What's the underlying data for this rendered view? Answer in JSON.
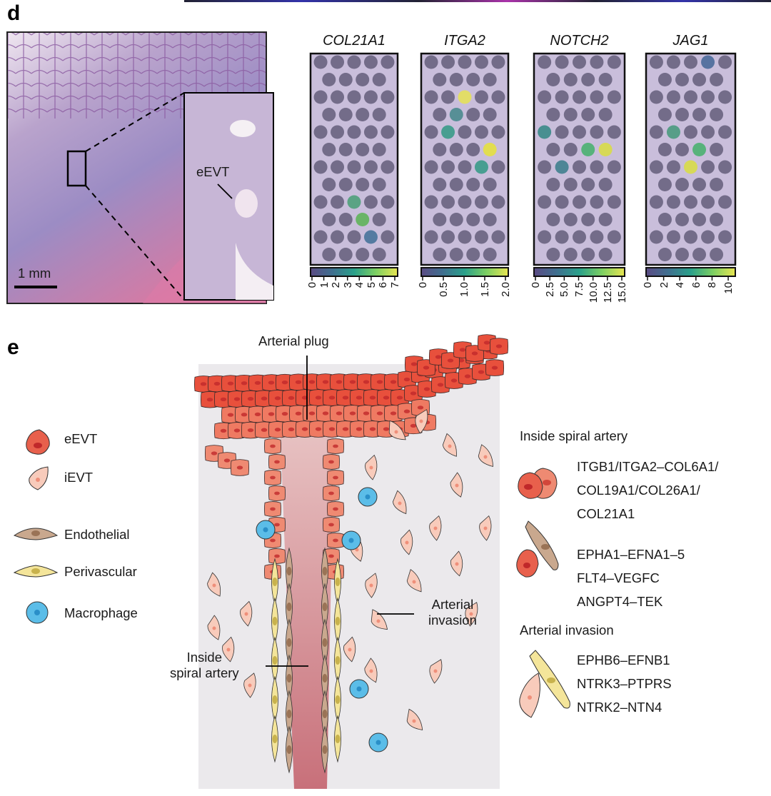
{
  "panel_d": {
    "label": "d",
    "tissue": {
      "inset_label": "eEVT",
      "scale_bar": "1 mm"
    },
    "genes": [
      {
        "name": "COL21A1",
        "ticks": [
          "0",
          "1",
          "2",
          "3",
          "4",
          "5",
          "6",
          "7"
        ]
      },
      {
        "name": "ITGA2",
        "ticks": [
          "0",
          "0.5",
          "1.0",
          "1.5",
          "2.0"
        ]
      },
      {
        "name": "NOTCH2",
        "ticks": [
          "0",
          "2.5",
          "5.0",
          "7.5",
          "10.0",
          "12.5",
          "15.0"
        ]
      },
      {
        "name": "JAG1",
        "ticks": [
          "0",
          "2",
          "4",
          "6",
          "8",
          "10"
        ]
      }
    ],
    "colormap": [
      "#5b4b84",
      "#3f6f8f",
      "#2aa08a",
      "#7ccf62",
      "#e8e551"
    ]
  },
  "panel_e": {
    "label": "e",
    "legend": [
      {
        "label": "eEVT",
        "icon": "eevt-cell-icon",
        "color": "#e8604c"
      },
      {
        "label": "iEVT",
        "icon": "ievt-cell-icon",
        "color": "#f6c4b4"
      },
      {
        "label": "Endothelial",
        "icon": "endothelial-cell-icon",
        "color": "#c9a88e"
      },
      {
        "label": "Perivascular",
        "icon": "perivascular-cell-icon",
        "color": "#f2e396"
      },
      {
        "label": "Macrophage",
        "icon": "macrophage-cell-icon",
        "color": "#5bbde8"
      }
    ],
    "annotations": {
      "arterial_plug": "Arterial plug",
      "arterial_invasion": [
        "Arterial",
        "invasion"
      ],
      "inside_spiral_artery": [
        "Inside",
        "spiral artery"
      ]
    },
    "interactions": {
      "inside_title": "Inside spiral artery",
      "inside_group1": [
        "ITGB1/ITGA2–COL6A1/",
        "COL19A1/COL26A1/",
        "COL21A1"
      ],
      "inside_group2": [
        "EPHA1–EFNA1–5",
        "FLT4–VEGFC",
        "ANGPT4–TEK"
      ],
      "invasion_title": "Arterial invasion",
      "invasion_group": [
        "EPHB6–EFNB1",
        "NTRK3–PTPRS",
        "NTRK2–NTN4"
      ]
    }
  }
}
